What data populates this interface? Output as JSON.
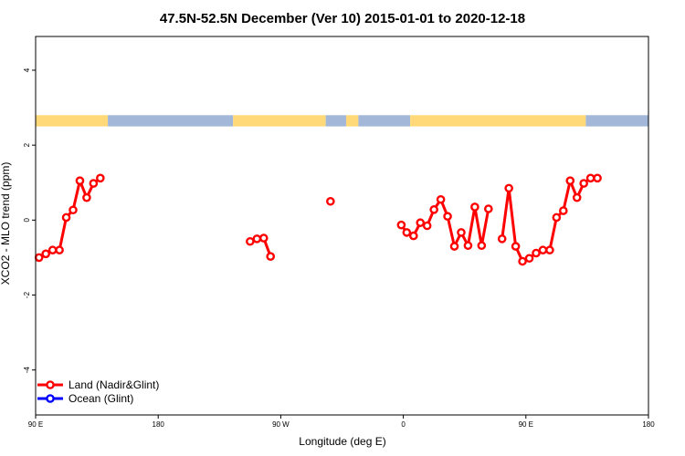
{
  "chart_data": {
    "type": "line",
    "title": "47.5N-52.5N December (Ver 10)   2015-01-01 to 2020-12-18",
    "xlabel": "Longitude (deg E)",
    "ylabel": "XCO2 - MLO trend (ppm)",
    "xlim": [
      90,
      540
    ],
    "ylim": [
      -5.2,
      4.9
    ],
    "x_ticks": [
      {
        "value": 90,
        "label": "90 E"
      },
      {
        "value": 180,
        "label": "180"
      },
      {
        "value": 270,
        "label": "90 W"
      },
      {
        "value": 360,
        "label": "0"
      },
      {
        "value": 450,
        "label": "90 E"
      },
      {
        "value": 540,
        "label": "180"
      }
    ],
    "y_ticks": [
      {
        "value": -4,
        "label": "-4"
      },
      {
        "value": -2,
        "label": "-2"
      },
      {
        "value": 0,
        "label": "0"
      },
      {
        "value": 2,
        "label": "2"
      },
      {
        "value": 4,
        "label": "4"
      }
    ],
    "surface_band": {
      "y_range": [
        2.5,
        2.8
      ],
      "land_color": "#FFD978",
      "ocean_color": "#A3B8D9",
      "segments": [
        {
          "from": 90,
          "to": 143,
          "surface": "land"
        },
        {
          "from": 143,
          "to": 235,
          "surface": "ocean"
        },
        {
          "from": 235,
          "to": 303,
          "surface": "land"
        },
        {
          "from": 303,
          "to": 318,
          "surface": "ocean"
        },
        {
          "from": 318,
          "to": 327,
          "surface": "land"
        },
        {
          "from": 327,
          "to": 365,
          "surface": "ocean"
        },
        {
          "from": 365,
          "to": 494,
          "surface": "land"
        },
        {
          "from": 494,
          "to": 540,
          "surface": "ocean"
        }
      ]
    },
    "series": [
      {
        "name": "Land (Nadir&Glint)",
        "color": "#FF0000",
        "segments": [
          {
            "x": [
              92.5,
              97.5,
              102.5,
              107.5,
              112.5,
              117.5,
              122.5,
              127.5,
              132.5,
              137.5
            ],
            "y": [
              -1.0,
              -0.9,
              -0.8,
              -0.8,
              0.07,
              0.27,
              1.05,
              0.6,
              0.98,
              1.12
            ]
          },
          {
            "x": [
              247.5,
              252.5,
              257.5,
              262.5
            ],
            "y": [
              -0.57,
              -0.5,
              -0.48,
              -0.97
            ]
          },
          {
            "x": [
              306.5
            ],
            "y": [
              0.5
            ]
          },
          {
            "x": [
              358.5,
              362.5,
              367.5,
              372.5,
              377.5,
              382.5,
              387.5,
              392.5,
              397.5,
              402.5,
              407.5,
              412.5,
              417.5,
              422.5
            ],
            "y": [
              -0.13,
              -0.33,
              -0.42,
              -0.07,
              -0.15,
              0.28,
              0.55,
              0.1,
              -0.7,
              -0.33,
              -0.68,
              0.35,
              -0.68,
              0.3
            ]
          },
          {
            "x": [
              432.5,
              437.5,
              442.5,
              447.5,
              452.5,
              457.5,
              462.5,
              467.5,
              472.5,
              477.5,
              482.5,
              487.5,
              492.5,
              497.5,
              502.5
            ],
            "y": [
              -0.5,
              0.85,
              -0.7,
              -1.1,
              -1.02,
              -0.88,
              -0.8,
              -0.8,
              0.07,
              0.25,
              1.05,
              0.6,
              0.98,
              1.12,
              1.12
            ]
          }
        ]
      },
      {
        "name": "Ocean (Glint)",
        "color": "#0000FF",
        "segments": []
      }
    ],
    "legend": {
      "placement": "bottom-left",
      "entries": [
        {
          "label": "Land (Nadir&Glint)",
          "color": "#FF0000"
        },
        {
          "label": "Ocean (Glint)",
          "color": "#0000FF"
        }
      ]
    }
  }
}
